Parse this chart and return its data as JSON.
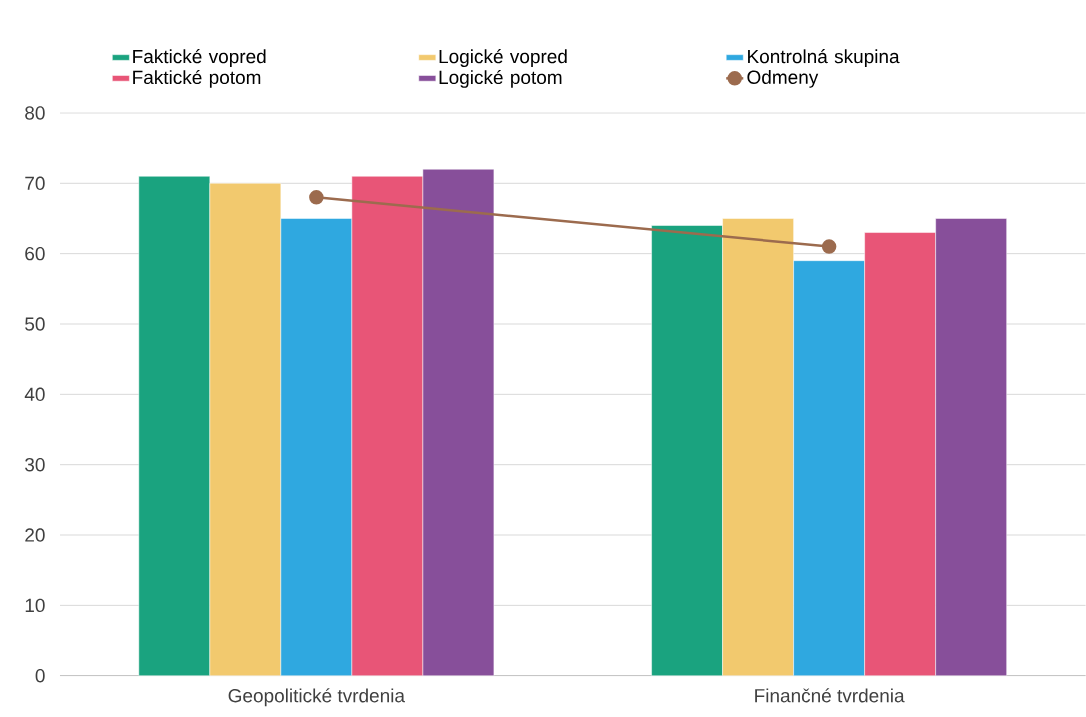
{
  "chart_data": {
    "type": "bar",
    "categories": [
      "Geopolitické tvrdenia",
      "Finančné tvrdenia"
    ],
    "series": [
      {
        "name": "Faktické vopred",
        "color": "#1aa37f",
        "values": [
          71,
          64
        ]
      },
      {
        "name": "Logické vopred",
        "color": "#f2c96e",
        "values": [
          70,
          65
        ]
      },
      {
        "name": "Kontrolná skupina",
        "color": "#2fa8e0",
        "values": [
          65,
          59
        ]
      },
      {
        "name": "Faktické potom",
        "color": "#e85577",
        "values": [
          71,
          63
        ]
      },
      {
        "name": "Logické potom",
        "color": "#874f9a",
        "values": [
          72,
          65
        ]
      },
      {
        "name": "Odmeny",
        "type": "line",
        "marker": "circle",
        "color": "#9c6b4e",
        "values": [
          68,
          61
        ]
      }
    ],
    "ylim": [
      0,
      80
    ],
    "yticks": [
      0,
      10,
      20,
      30,
      40,
      50,
      60,
      70,
      80
    ],
    "grid": "y",
    "legend": "top"
  }
}
